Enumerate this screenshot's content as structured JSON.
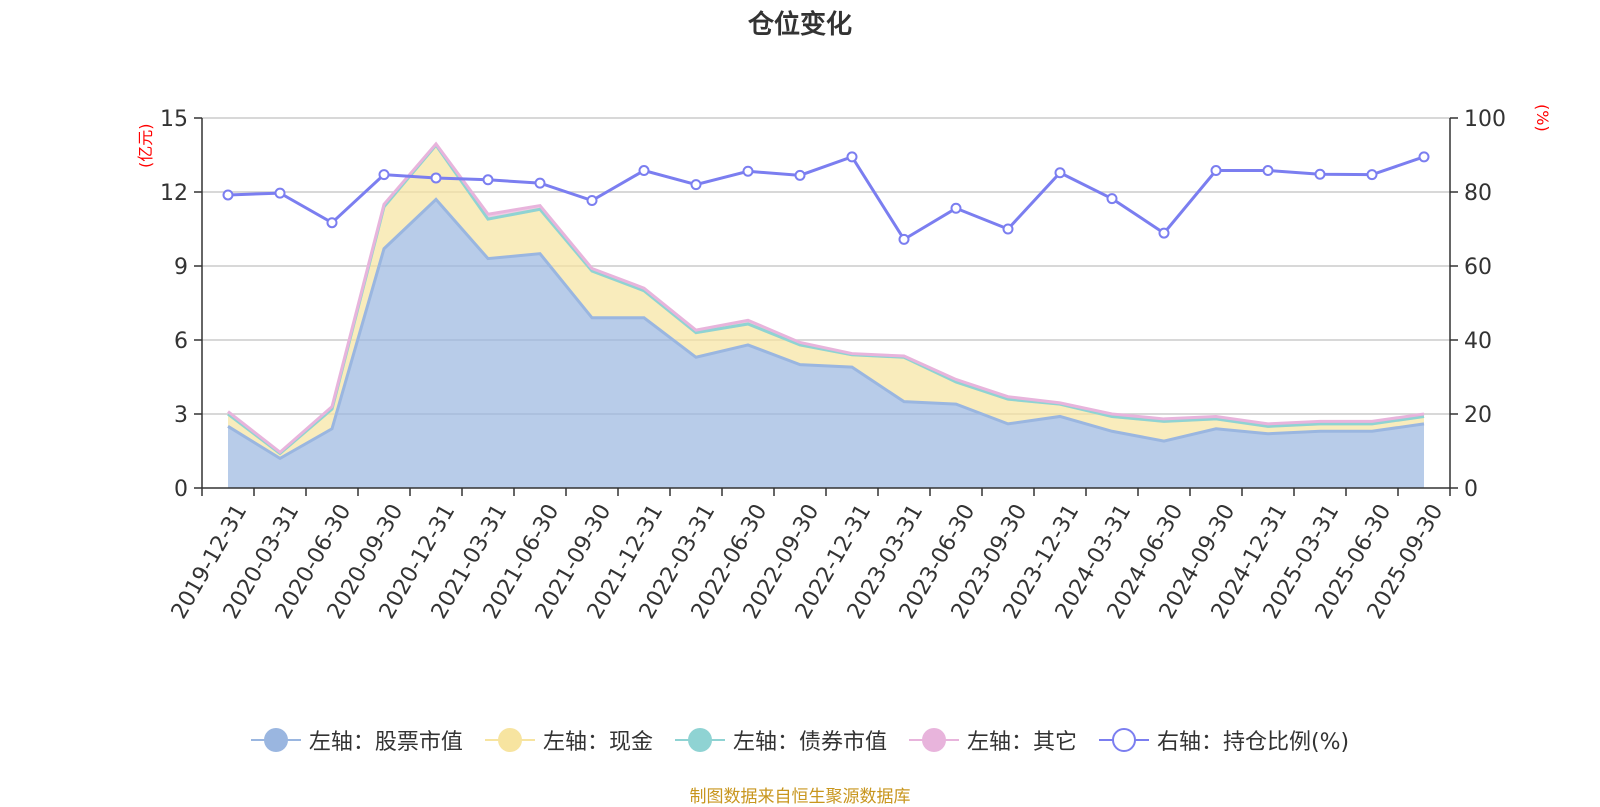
{
  "chart_data": {
    "type": "area",
    "title": "仓位变化",
    "left_axis_unit": "(亿元)",
    "right_axis_unit": "(%)",
    "y_left": {
      "min": 0,
      "max": 15,
      "ticks": [
        0,
        3,
        6,
        9,
        12,
        15
      ]
    },
    "y_right": {
      "min": 0,
      "max": 100,
      "ticks": [
        0,
        20,
        40,
        60,
        80,
        100
      ]
    },
    "categories": [
      "2019-12-31",
      "2020-03-31",
      "2020-06-30",
      "2020-09-30",
      "2020-12-31",
      "2021-03-31",
      "2021-06-30",
      "2021-09-30",
      "2021-12-31",
      "2022-03-31",
      "2022-06-30",
      "2022-09-30",
      "2022-12-31",
      "2023-03-31",
      "2023-06-30",
      "2023-09-30",
      "2023-12-31",
      "2024-03-31",
      "2024-06-30",
      "2024-09-30",
      "2024-12-31",
      "2025-03-31",
      "2025-06-30",
      "2025-09-30"
    ],
    "series": [
      {
        "name": "左轴：股票市值",
        "axis": "left",
        "stack": true,
        "color": "#9ab6e0",
        "values": [
          2.5,
          1.2,
          2.4,
          9.7,
          11.7,
          9.3,
          9.5,
          6.9,
          6.9,
          5.3,
          5.8,
          5.0,
          4.9,
          3.5,
          3.4,
          2.6,
          2.9,
          2.3,
          1.9,
          2.4,
          2.2,
          2.3,
          2.3,
          2.6
        ]
      },
      {
        "name": "左轴：现金",
        "axis": "left",
        "stack": true,
        "color": "#f7e4a0",
        "values": [
          0.5,
          0.2,
          0.8,
          1.7,
          2.2,
          1.6,
          1.8,
          1.9,
          1.1,
          1.0,
          0.85,
          0.8,
          0.5,
          1.8,
          0.9,
          1.0,
          0.5,
          0.6,
          0.8,
          0.4,
          0.3,
          0.3,
          0.3,
          0.3
        ]
      },
      {
        "name": "左轴：债券市值",
        "axis": "left",
        "stack": true,
        "color": "#8fd3d3",
        "values": [
          0,
          0,
          0,
          0,
          0,
          0,
          0,
          0,
          0,
          0,
          0,
          0,
          0,
          0,
          0,
          0,
          0,
          0,
          0,
          0,
          0,
          0,
          0,
          0
        ]
      },
      {
        "name": "左轴：其它",
        "axis": "left",
        "stack": true,
        "color": "#e8b4dc",
        "values": [
          0.1,
          0.05,
          0.1,
          0.1,
          0.05,
          0.2,
          0.15,
          0.1,
          0.1,
          0.1,
          0.15,
          0.1,
          0.05,
          0.05,
          0.1,
          0.1,
          0.05,
          0.1,
          0.1,
          0.1,
          0.1,
          0.1,
          0.1,
          0.1
        ]
      },
      {
        "name": "右轴：持仓比例(%)",
        "axis": "right",
        "type": "line",
        "color": "#7b7ef0",
        "values": [
          79.2,
          79.7,
          71.7,
          84.7,
          83.8,
          83.3,
          82.4,
          77.7,
          85.8,
          82.0,
          85.6,
          84.5,
          89.5,
          67.2,
          75.6,
          70.0,
          85.2,
          78.2,
          68.9,
          85.8,
          85.8,
          84.8,
          84.7,
          89.5
        ]
      }
    ],
    "grid": true,
    "legend_position": "bottom-center"
  },
  "source_note": "制图数据来自恒生聚源数据库"
}
